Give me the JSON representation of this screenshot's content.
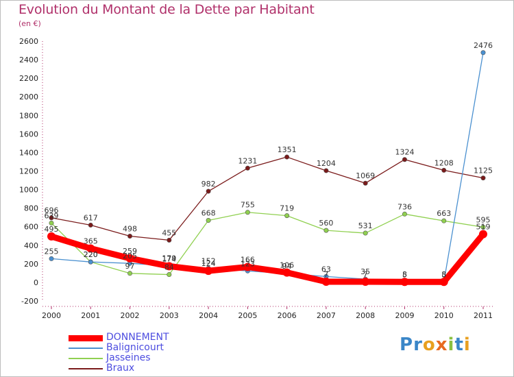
{
  "title": "Evolution du Montant de la Dette par Habitant",
  "subtitle": "(en €)",
  "logo": {
    "text": "Proxiti",
    "letters": [
      "P",
      "r",
      "o",
      "x",
      "i",
      "t",
      "i"
    ],
    "colors": [
      "#3a86c8",
      "#3a86c8",
      "#e8a020",
      "#e86a20",
      "#8ac040",
      "#3a86c8",
      "#e8a020"
    ]
  },
  "chart_data": {
    "type": "line",
    "x": [
      "2000",
      "2001",
      "2002",
      "2003",
      "2004",
      "2005",
      "2006",
      "2007",
      "2008",
      "2009",
      "2010",
      "2011"
    ],
    "ylim": [
      -200,
      2600
    ],
    "yticks": [
      "-200",
      "0",
      "200",
      "400",
      "600",
      "800",
      "1000",
      "1200",
      "1400",
      "1600",
      "1800",
      "2000",
      "2200",
      "2400",
      "2600"
    ],
    "grid": false,
    "legend_position": "bottom-left",
    "series": [
      {
        "name": "DONNEMENT",
        "color": "#ff0000",
        "values": [
          495,
          365,
          259,
          174,
          124,
          166,
          106,
          7,
          7,
          5,
          5,
          519
        ],
        "labels": [
          "495",
          "365",
          "259",
          "174",
          "124",
          "166",
          "106",
          "7",
          "7",
          "5",
          "5",
          "519"
        ]
      },
      {
        "name": "Balignicourt",
        "color": "#4a90d0",
        "values": [
          255,
          220,
          205,
          179,
          152,
          123,
          94,
          63,
          35,
          8,
          8,
          2476
        ],
        "labels": [
          "255",
          "220",
          "205",
          "179",
          "152",
          "123",
          "94",
          "63",
          "35",
          "8",
          "8",
          "2476"
        ]
      },
      {
        "name": "Jasseines",
        "color": "#90d050",
        "values": [
          639,
          220,
          97,
          84,
          668,
          755,
          719,
          560,
          531,
          736,
          663,
          595
        ],
        "labels": [
          "639",
          "220",
          "97",
          "84",
          "668",
          "755",
          "719",
          "560",
          "531",
          "736",
          "663",
          "595"
        ]
      },
      {
        "name": "Braux",
        "color": "#7a1a1a",
        "values": [
          696,
          617,
          498,
          455,
          982,
          1231,
          1351,
          1204,
          1069,
          1324,
          1208,
          1125
        ],
        "labels": [
          "696",
          "617",
          "498",
          "455",
          "982",
          "1231",
          "1351",
          "1204",
          "1069",
          "1324",
          "1208",
          "1125"
        ]
      }
    ]
  }
}
